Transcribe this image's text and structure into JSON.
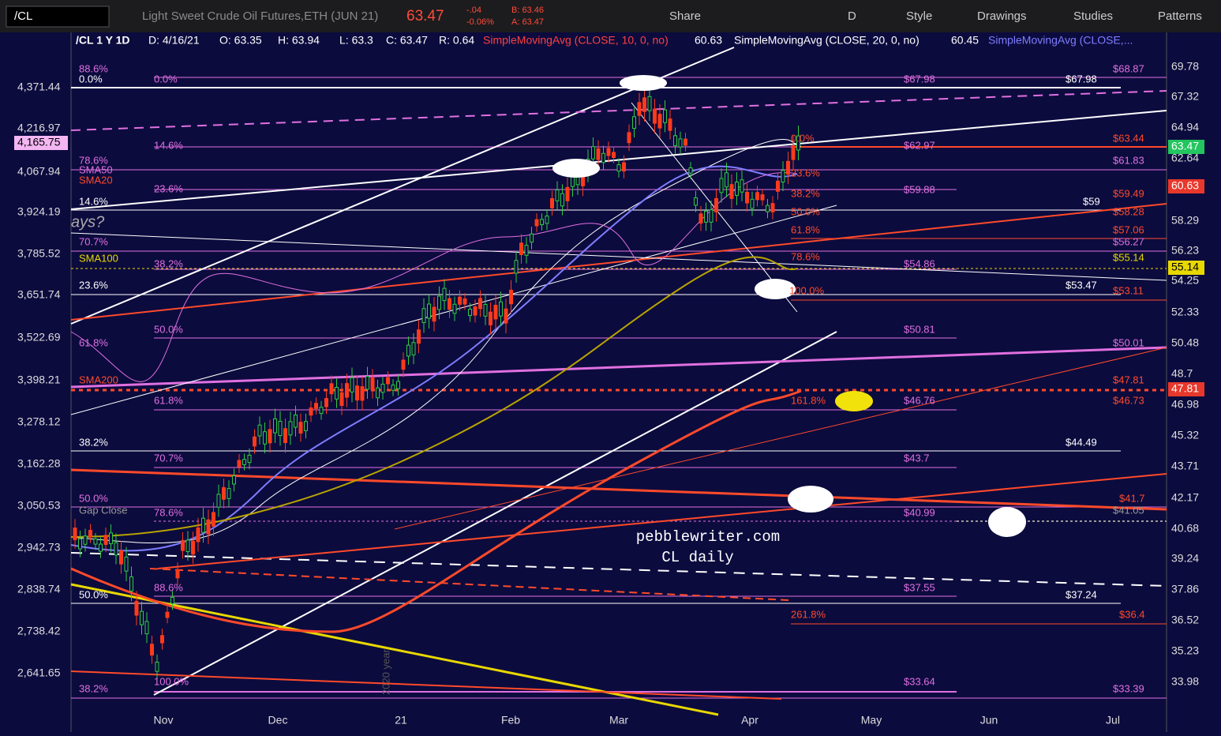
{
  "toolbar": {
    "symbol": "/CL",
    "description": "Light Sweet Crude Oil Futures,ETH (JUN 21)",
    "last": "63.47",
    "change": "-.04",
    "change_pct": "-0.06%",
    "bid": "B: 63.46",
    "ask": "A: 63.47",
    "buttons": [
      "Share",
      "D",
      "Style",
      "Drawings",
      "Studies",
      "Patterns"
    ]
  },
  "header": {
    "items": [
      "/CL 1 Y 1D",
      "D: 4/16/21",
      "O: 63.35",
      "H: 63.94",
      "L: 63.3",
      "C: 63.47",
      "R: 0.64",
      "SimpleMovingAvg (CLOSE, 10, 0, no)",
      "60.63",
      "SimpleMovingAvg (CLOSE, 20, 0, no)",
      "60.45",
      "SimpleMovingAvg (CLOSE,..."
    ]
  },
  "left_axis": [
    "4,371.44",
    "4,216.97",
    "4,165.75",
    "4,067.94",
    "3,924.19",
    "3,785.52",
    "3,651.74",
    "3,522.69",
    "3,398.21",
    "3,278.12",
    "3,162.28",
    "3,050.53",
    "2,942.73",
    "2,838.74",
    "2,738.42",
    "2,641.65"
  ],
  "right_axis": [
    "69.78",
    "67.32",
    "64.94",
    "63.47",
    "62.64",
    "60.63",
    "58.29",
    "56.23",
    "55.14",
    "54.25",
    "52.33",
    "50.48",
    "48.7",
    "47.81",
    "46.98",
    "45.32",
    "43.71",
    "42.17",
    "40.68",
    "39.24",
    "37.86",
    "36.52",
    "35.23",
    "33.98"
  ],
  "months": [
    "Nov",
    "Dec",
    "21",
    "Feb",
    "Mar",
    "Apr",
    "May",
    "Jun",
    "Jul"
  ],
  "labels": [
    "88.6%",
    "0.0%",
    "0.0%",
    "$67.98",
    "$67.98",
    "$68.87",
    "14.6%",
    "0.0%",
    "$62.97",
    "$63.44",
    "78.6%",
    "SMA50",
    "SMA20",
    "23.6%",
    "23.6%",
    "$61.83",
    "$59.88",
    "38.2%",
    "$59.49",
    "14.6%",
    "$59",
    "50.0%",
    "$58.28",
    "70.7%",
    "61.8%",
    "$57.06",
    "$56.27",
    "SMA100",
    "78.6%",
    "$55.14",
    "38.2%",
    "$54.86",
    "23.6%",
    "$53.47",
    "100.0%",
    "$53.11",
    "50.0%",
    "$50.81",
    "61.8%",
    "$50.01",
    "SMA200",
    "$47.81",
    "61.8%",
    "161.8%",
    "$46.76",
    "$46.73",
    "38.2%",
    "$44.49",
    "70.7%",
    "$43.7",
    "50.0%",
    "$41.7",
    "Gap Close",
    "78.6%",
    "$40.99",
    "$41.05",
    "88.6%",
    "$37.55",
    "50.0%",
    "$37.24",
    "261.8%",
    "$36.4",
    "100.0%",
    "$33.64",
    "38.2%",
    "$33.39",
    "ays?",
    "2020 year"
  ],
  "watermark": [
    "pebblewriter.com",
    "CL daily"
  ]
}
